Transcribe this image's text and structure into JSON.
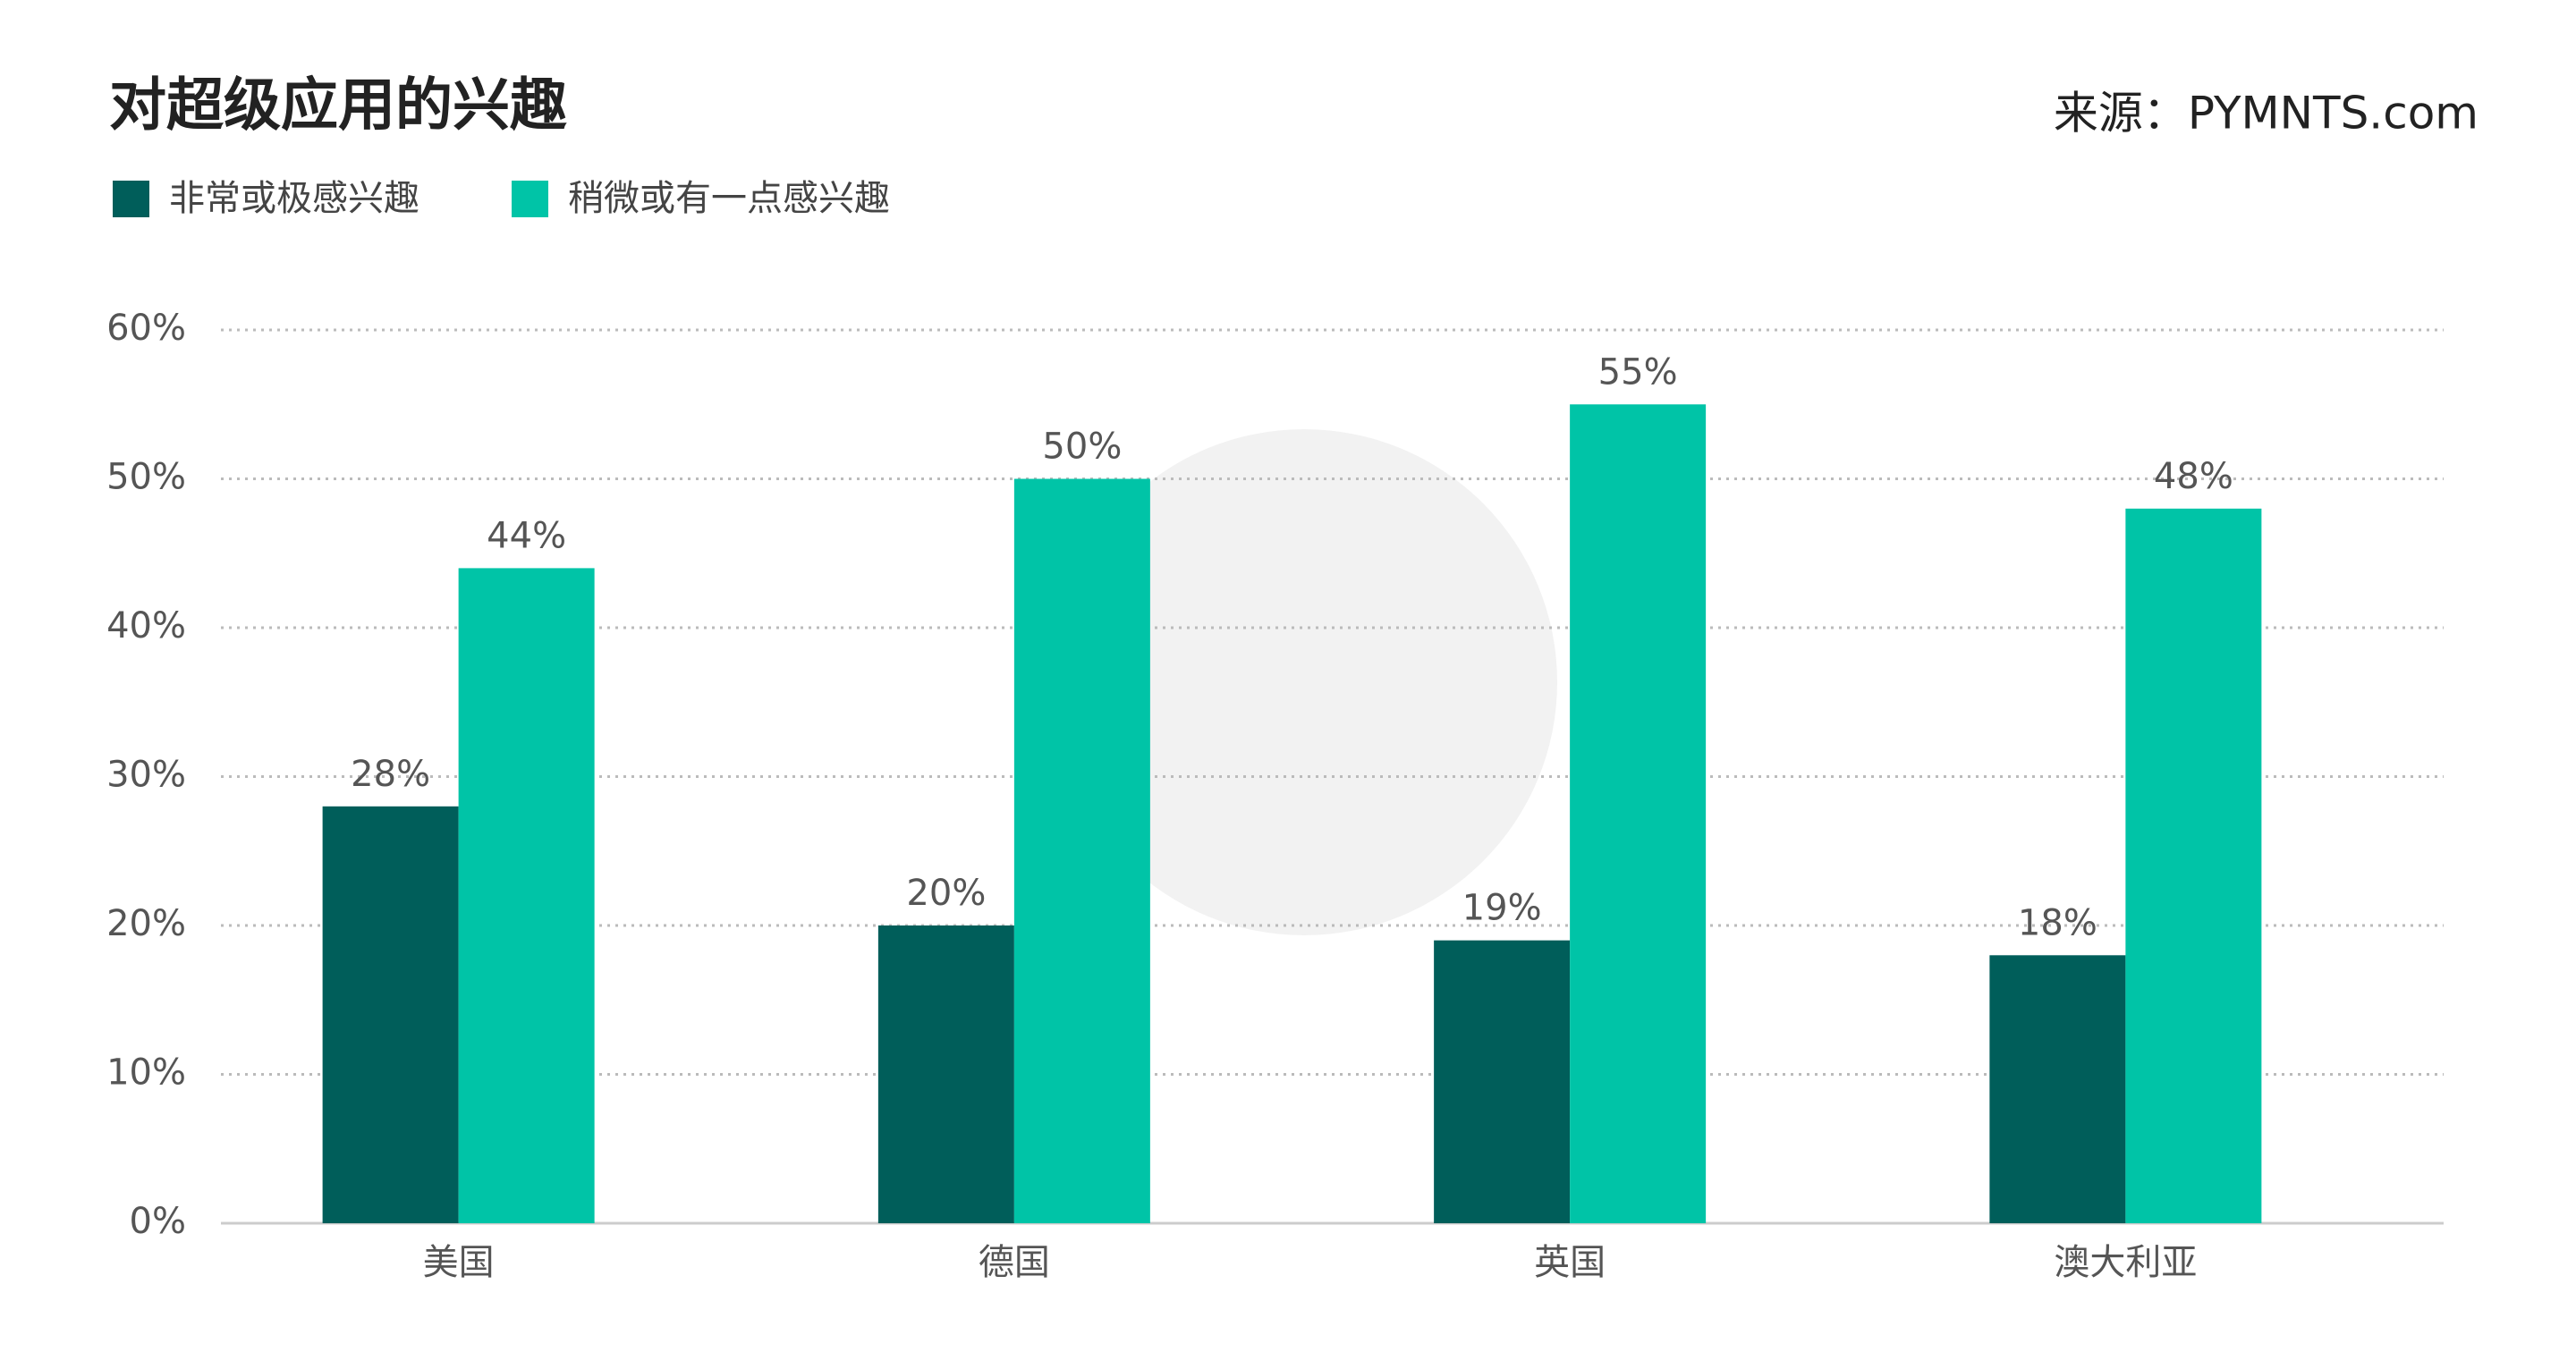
{
  "chart_data": {
    "type": "bar",
    "title": "对超级应用的兴趣",
    "source": "来源：PYMNTS.com",
    "categories": [
      "美国",
      "德国",
      "英国",
      "澳大利亚"
    ],
    "series": [
      {
        "name": "非常或极感兴趣",
        "color": "#005e5a",
        "values": [
          28,
          20,
          19,
          18
        ],
        "value_labels": [
          "28%",
          "20%",
          "19%",
          "18%"
        ]
      },
      {
        "name": "稍微或有一点感兴趣",
        "color": "#00c4a7",
        "values": [
          44,
          50,
          55,
          48
        ],
        "value_labels": [
          "44%",
          "50%",
          "55%",
          "48%"
        ]
      }
    ],
    "ylim": [
      0,
      60
    ],
    "yticks": [
      {
        "value": 0,
        "label": "0%"
      },
      {
        "value": 10,
        "label": "10%"
      },
      {
        "value": 20,
        "label": "20%"
      },
      {
        "value": 30,
        "label": "30%"
      },
      {
        "value": 40,
        "label": "40%"
      },
      {
        "value": 50,
        "label": "50%"
      },
      {
        "value": 60,
        "label": "60%"
      }
    ],
    "grid": true
  }
}
